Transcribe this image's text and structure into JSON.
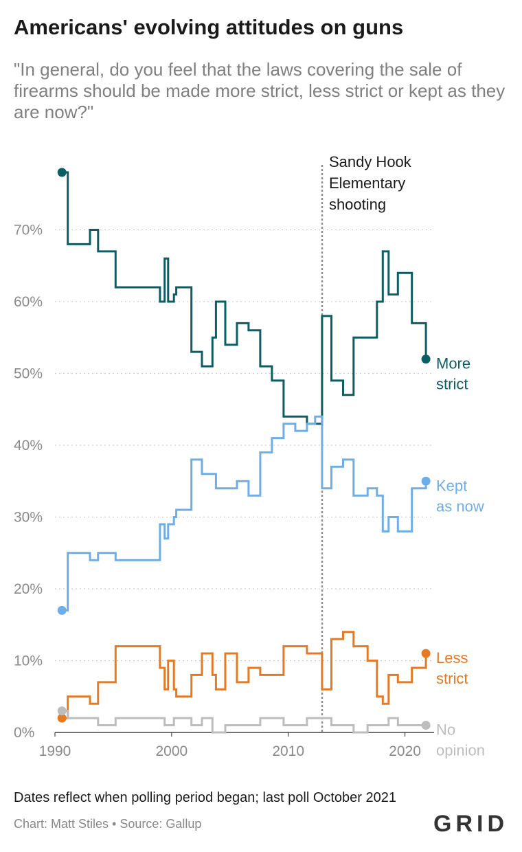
{
  "title": "Americans' evolving attitudes on guns",
  "subtitle": "\"In general, do you feel that the laws covering the sale of firearms should be made more strict, less strict or kept as they are now?\"",
  "note": "Dates reflect when polling period began; last poll October 2021",
  "credit": "Chart: Matt Stiles • Source: Gallup",
  "logo": "GRID",
  "chart_data": {
    "type": "line",
    "step": true,
    "xlim": [
      1990,
      2022.5
    ],
    "ylim": [
      0,
      80
    ],
    "x_ticks": [
      1990,
      2000,
      2010,
      2020
    ],
    "y_ticks": [
      0,
      10,
      20,
      30,
      40,
      50,
      60,
      70
    ],
    "y_tick_labels": [
      "0%",
      "10%",
      "20%",
      "30%",
      "40%",
      "50%",
      "60%",
      "70%"
    ],
    "grid": true,
    "annotation": {
      "x": 2012.9,
      "lines": [
        "Sandy Hook",
        "Elementary",
        "shooting"
      ]
    },
    "series": [
      {
        "name": "More strict",
        "label_lines": [
          "More",
          "strict"
        ],
        "color": "#0b5e63",
        "points": [
          [
            1990.6,
            78
          ],
          [
            1991.1,
            68
          ],
          [
            1993.0,
            70
          ],
          [
            1993.7,
            67
          ],
          [
            1995.2,
            62
          ],
          [
            1999.0,
            60
          ],
          [
            1999.4,
            66
          ],
          [
            1999.7,
            60
          ],
          [
            2000.2,
            61
          ],
          [
            2000.4,
            62
          ],
          [
            2001.7,
            53
          ],
          [
            2002.6,
            51
          ],
          [
            2003.5,
            55
          ],
          [
            2003.8,
            60
          ],
          [
            2004.6,
            54
          ],
          [
            2005.6,
            57
          ],
          [
            2006.6,
            56
          ],
          [
            2007.6,
            51
          ],
          [
            2008.6,
            49
          ],
          [
            2009.6,
            44
          ],
          [
            2011.6,
            43
          ],
          [
            2012.9,
            58
          ],
          [
            2013.7,
            49
          ],
          [
            2014.7,
            47
          ],
          [
            2015.6,
            55
          ],
          [
            2017.6,
            60
          ],
          [
            2018.1,
            67
          ],
          [
            2018.6,
            61
          ],
          [
            2019.4,
            64
          ],
          [
            2020.6,
            57
          ],
          [
            2021.8,
            52
          ]
        ]
      },
      {
        "name": "Kept as now",
        "label_lines": [
          "Kept",
          "as now"
        ],
        "color": "#6eaee8",
        "points": [
          [
            1990.6,
            17
          ],
          [
            1991.1,
            25
          ],
          [
            1993.0,
            24
          ],
          [
            1993.7,
            25
          ],
          [
            1995.2,
            24
          ],
          [
            1999.0,
            29
          ],
          [
            1999.4,
            27
          ],
          [
            1999.7,
            29
          ],
          [
            2000.2,
            30
          ],
          [
            2000.4,
            31
          ],
          [
            2001.7,
            38
          ],
          [
            2002.6,
            36
          ],
          [
            2003.5,
            36
          ],
          [
            2003.8,
            34
          ],
          [
            2004.6,
            34
          ],
          [
            2005.6,
            35
          ],
          [
            2006.6,
            33
          ],
          [
            2007.6,
            39
          ],
          [
            2008.6,
            41
          ],
          [
            2009.6,
            43
          ],
          [
            2010.6,
            42
          ],
          [
            2011.6,
            43
          ],
          [
            2012.3,
            44
          ],
          [
            2012.9,
            34
          ],
          [
            2013.7,
            37
          ],
          [
            2014.7,
            38
          ],
          [
            2015.6,
            33
          ],
          [
            2016.8,
            34
          ],
          [
            2017.6,
            33
          ],
          [
            2018.1,
            28
          ],
          [
            2018.6,
            30
          ],
          [
            2019.4,
            28
          ],
          [
            2020.6,
            34
          ],
          [
            2021.8,
            35
          ]
        ]
      },
      {
        "name": "Less strict",
        "label_lines": [
          "Less",
          "strict"
        ],
        "color": "#e57a22",
        "points": [
          [
            1990.6,
            2
          ],
          [
            1991.1,
            5
          ],
          [
            1993.0,
            4
          ],
          [
            1993.7,
            7
          ],
          [
            1995.2,
            12
          ],
          [
            1999.0,
            9
          ],
          [
            1999.4,
            6
          ],
          [
            1999.7,
            10
          ],
          [
            2000.2,
            6
          ],
          [
            2000.4,
            5
          ],
          [
            2001.7,
            8
          ],
          [
            2002.6,
            11
          ],
          [
            2003.5,
            8
          ],
          [
            2003.8,
            6
          ],
          [
            2004.6,
            11
          ],
          [
            2005.6,
            7
          ],
          [
            2006.6,
            9
          ],
          [
            2007.6,
            8
          ],
          [
            2009.6,
            12
          ],
          [
            2011.6,
            11
          ],
          [
            2012.9,
            6
          ],
          [
            2013.7,
            13
          ],
          [
            2014.7,
            14
          ],
          [
            2015.6,
            12
          ],
          [
            2016.8,
            10
          ],
          [
            2017.6,
            5
          ],
          [
            2018.1,
            4
          ],
          [
            2018.6,
            8
          ],
          [
            2019.4,
            7
          ],
          [
            2020.6,
            9
          ],
          [
            2021.8,
            11
          ]
        ]
      },
      {
        "name": "No opinion",
        "label_lines": [
          "No",
          "opinion"
        ],
        "color": "#bdbdbd",
        "points": [
          [
            1990.6,
            3
          ],
          [
            1991.1,
            2
          ],
          [
            1993.7,
            1
          ],
          [
            1995.2,
            2
          ],
          [
            1999.4,
            1
          ],
          [
            2000.2,
            2
          ],
          [
            2001.7,
            1
          ],
          [
            2002.6,
            2
          ],
          [
            2003.5,
            0
          ],
          [
            2004.6,
            1
          ],
          [
            2007.6,
            2
          ],
          [
            2009.6,
            1
          ],
          [
            2011.6,
            2
          ],
          [
            2013.7,
            1
          ],
          [
            2015.6,
            0
          ],
          [
            2016.8,
            1
          ],
          [
            2018.6,
            2
          ],
          [
            2019.4,
            1
          ],
          [
            2021.8,
            1
          ]
        ]
      }
    ]
  }
}
